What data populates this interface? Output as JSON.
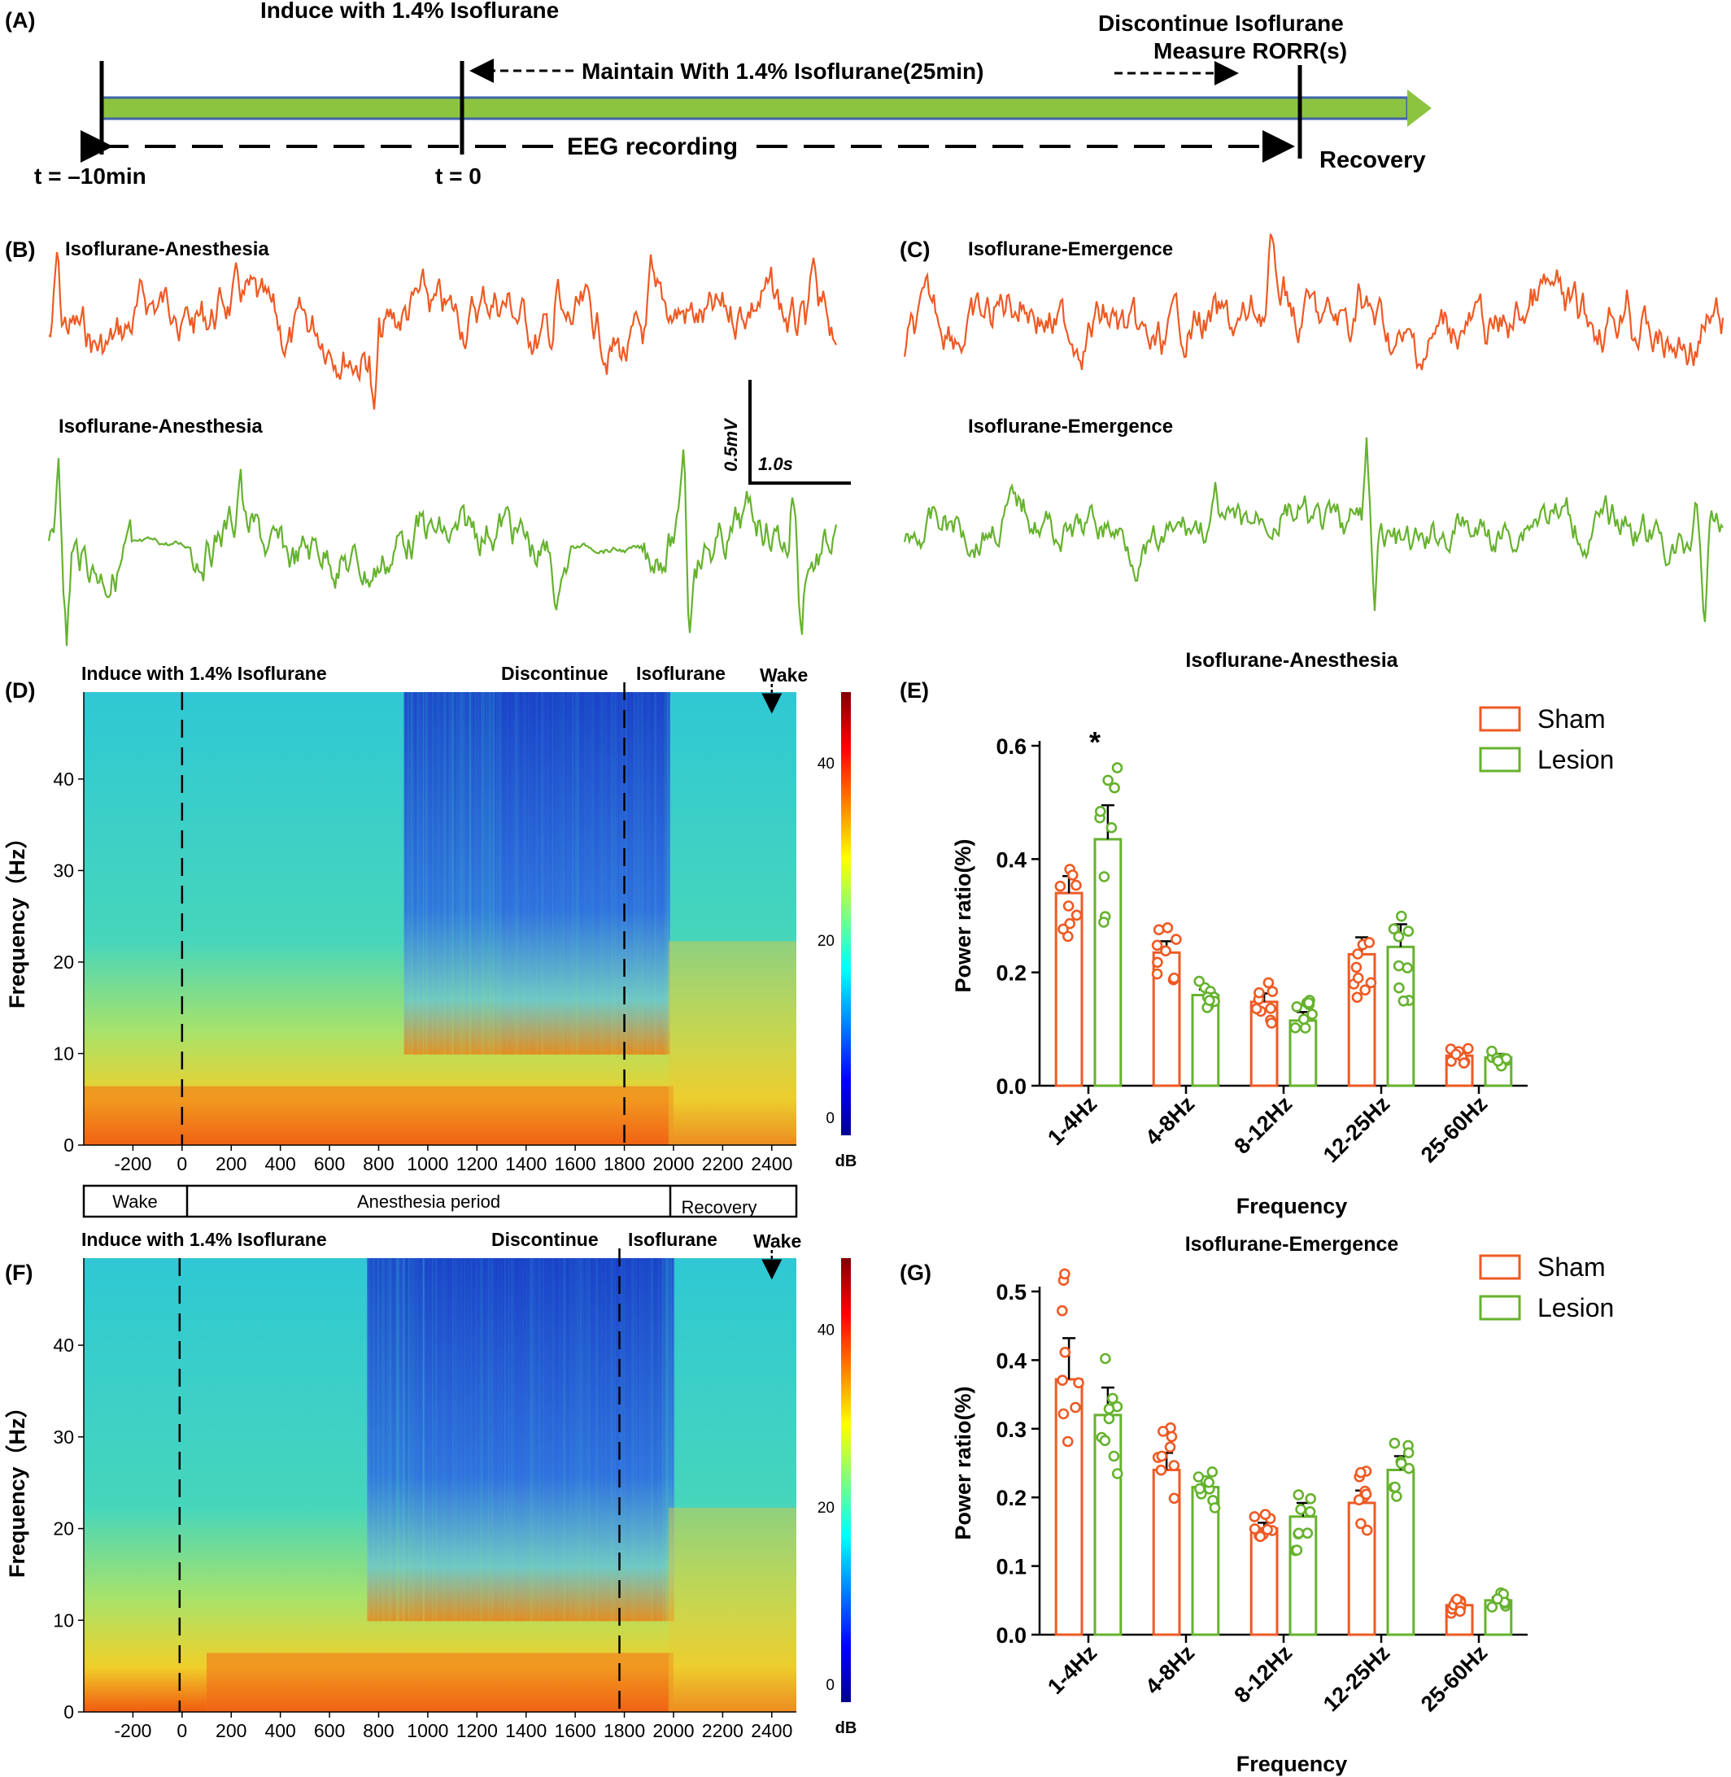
{
  "panels": {
    "a": "(A)",
    "b": "(B)",
    "c": "(C)",
    "d": "(D)",
    "e": "(E)",
    "f": "(F)",
    "g": "(G)"
  },
  "colors": {
    "sham": "#ee5a24",
    "lesion": "#66b22e",
    "bar_fill": "#8cc43f",
    "timeline_border": "#3f63a8",
    "text": "#000000"
  },
  "timeline": {
    "induce": "Induce with 1.4% Isoflurane",
    "discontinue": "Discontinue Isoflurane",
    "measure": "Measure RORR(s)",
    "maintain": "Maintain With 1.4% Isoflurane(25min)",
    "eeg": "EEG recording",
    "t_start": "t = –10min",
    "t_zero": "t = 0",
    "recovery": "Recovery"
  },
  "traces": {
    "b_top": "Isoflurane-Anesthesia",
    "b_bottom": "Isoflurane-Anesthesia",
    "c_top": "Isoflurane-Emergence",
    "c_bottom": "Isoflurane-Emergence",
    "scale_v": "0.5mV",
    "scale_h": "1.0s"
  },
  "spectrogram_d": {
    "induce": "Induce with 1.4% Isoflurane",
    "discontinue": "Discontinue",
    "isoflurane": "Isoflurane",
    "wake": "Wake",
    "ylabel": "Frequency（Hz）",
    "yticks": [
      "0",
      "10",
      "20",
      "30",
      "40"
    ],
    "xticks": [
      "-200",
      "0",
      "200",
      "400",
      "600",
      "800",
      "1000",
      "1200",
      "1400",
      "1600",
      "1800",
      "2000",
      "2200",
      "2400"
    ],
    "cbar_ticks": [
      "0",
      "20",
      "40"
    ],
    "cbar_unit": "dB"
  },
  "period_bar": {
    "wake": "Wake",
    "anesthesia": "Anesthesia  period",
    "recovery": "Recovery"
  },
  "spectrogram_f": {
    "induce": "Induce with 1.4% Isoflurane",
    "discontinue": "Discontinue",
    "isoflurane": "Isoflurane",
    "wake": "Wake",
    "ylabel": "Frequency（Hz）",
    "yticks": [
      "0",
      "10",
      "20",
      "30",
      "40"
    ],
    "xticks": [
      "-200",
      "0",
      "200",
      "400",
      "600",
      "800",
      "1000",
      "1200",
      "1400",
      "1600",
      "1800",
      "2000",
      "2200",
      "2400"
    ],
    "cbar_ticks": [
      "0",
      "20",
      "40"
    ],
    "cbar_unit": "dB"
  },
  "chart_data": [
    {
      "type": "bar",
      "title": "Isoflurane-Anesthesia",
      "xlabel": "Frequency",
      "ylabel": "Power ratio(%)",
      "ylim": [
        0,
        0.6
      ],
      "yticks": [
        "0.0",
        "0.2",
        "0.4",
        "0.6"
      ],
      "categories": [
        "1-4Hz",
        "4-8Hz",
        "8-12Hz",
        "12-25Hz",
        "25-60Hz"
      ],
      "legend_position": "top-right",
      "significance": [
        {
          "category": "1-4Hz",
          "label": "*"
        }
      ],
      "series": [
        {
          "name": "Sham",
          "values": [
            0.34,
            0.235,
            0.148,
            0.232,
            0.053
          ],
          "sem": [
            0.03,
            0.02,
            0.015,
            0.03,
            0.005
          ]
        },
        {
          "name": "Lesion",
          "values": [
            0.435,
            0.16,
            0.115,
            0.245,
            0.05
          ],
          "sem": [
            0.06,
            0.01,
            0.015,
            0.04,
            0.006
          ]
        }
      ]
    },
    {
      "type": "bar",
      "title": "Isoflurane-Emergence",
      "xlabel": "Frequency",
      "ylabel": "Power ratio(%)",
      "ylim": [
        0,
        0.5
      ],
      "yticks": [
        "0.0",
        "0.1",
        "0.2",
        "0.3",
        "0.4",
        "0.5"
      ],
      "categories": [
        "1-4Hz",
        "4-8Hz",
        "8-12Hz",
        "12-25Hz",
        "25-60Hz"
      ],
      "legend_position": "top-right",
      "series": [
        {
          "name": "Sham",
          "values": [
            0.372,
            0.24,
            0.155,
            0.192,
            0.043
          ],
          "sem": [
            0.06,
            0.025,
            0.008,
            0.018,
            0.004
          ]
        },
        {
          "name": "Lesion",
          "values": [
            0.32,
            0.215,
            0.172,
            0.24,
            0.05
          ],
          "sem": [
            0.04,
            0.012,
            0.02,
            0.02,
            0.004
          ]
        }
      ]
    }
  ]
}
